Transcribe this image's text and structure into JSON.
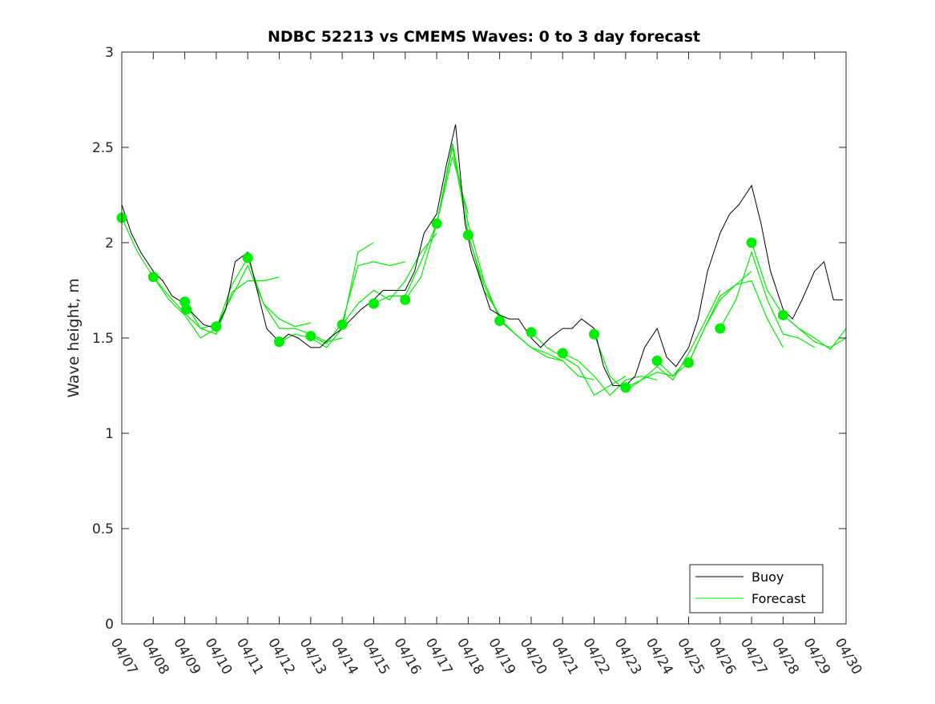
{
  "chart_data": {
    "type": "line",
    "title": "NDBC 52213 vs CMEMS Waves: 0 to 3 day forecast",
    "xlabel": "",
    "ylabel": "Wave height, m",
    "xlim": [
      "04/07",
      "04/30"
    ],
    "ylim": [
      0,
      3
    ],
    "x_ticks": [
      "04/07",
      "04/08",
      "04/09",
      "04/10",
      "04/11",
      "04/12",
      "04/13",
      "04/14",
      "04/15",
      "04/16",
      "04/17",
      "04/18",
      "04/19",
      "04/20",
      "04/21",
      "04/22",
      "04/23",
      "04/24",
      "04/25",
      "04/26",
      "04/27",
      "04/28",
      "04/29",
      "04/30"
    ],
    "y_ticks": [
      "0",
      "0.5",
      "1",
      "1.5",
      "2",
      "2.5",
      "3"
    ],
    "grid": false,
    "legend": {
      "placement": "bottom-right",
      "entries": [
        "Buoy",
        "Forecast"
      ]
    },
    "colors": {
      "buoy": "#000000",
      "forecast": "#00ee00",
      "axes": "#262626"
    },
    "buoy": {
      "name": "Buoy",
      "day_offset": [
        0,
        0.3,
        0.6,
        1,
        1.3,
        1.6,
        2,
        2.3,
        2.6,
        3,
        3.3,
        3.6,
        4,
        4.3,
        4.6,
        5,
        5.3,
        5.6,
        6,
        6.3,
        6.6,
        7,
        7.3,
        7.6,
        8,
        8.3,
        8.6,
        9,
        9.3,
        9.6,
        10,
        10.3,
        10.6,
        10.9,
        11.1,
        11.4,
        11.7,
        12,
        12.3,
        12.6,
        13,
        13.3,
        13.6,
        14,
        14.3,
        14.6,
        15,
        15.3,
        15.6,
        16,
        16.3,
        16.6,
        17,
        17.3,
        17.6,
        18,
        18.3,
        18.6,
        19,
        19.3,
        19.6,
        20,
        20.3,
        20.6,
        21,
        21.3,
        21.6,
        22,
        22.3,
        22.6,
        22.9
      ],
      "hs": [
        2.2,
        2.05,
        1.95,
        1.85,
        1.8,
        1.72,
        1.68,
        1.62,
        1.57,
        1.55,
        1.65,
        1.9,
        1.95,
        1.75,
        1.55,
        1.48,
        1.52,
        1.5,
        1.45,
        1.45,
        1.5,
        1.55,
        1.6,
        1.65,
        1.7,
        1.75,
        1.75,
        1.75,
        1.85,
        2.05,
        2.15,
        2.4,
        2.62,
        2.1,
        1.95,
        1.8,
        1.65,
        1.62,
        1.6,
        1.6,
        1.5,
        1.45,
        1.5,
        1.55,
        1.55,
        1.6,
        1.55,
        1.35,
        1.25,
        1.25,
        1.3,
        1.45,
        1.55,
        1.4,
        1.35,
        1.45,
        1.6,
        1.85,
        2.05,
        2.15,
        2.2,
        2.3,
        2.1,
        1.85,
        1.65,
        1.6,
        1.7,
        1.85,
        1.9,
        1.7,
        1.7
      ]
    },
    "forecast_runs": [
      {
        "name": "Forecast",
        "day_offset": [
          0,
          0.5,
          1,
          1.5,
          2,
          2.5,
          3
        ],
        "hs": [
          2.13,
          1.95,
          1.82,
          1.72,
          1.63,
          1.55,
          1.57
        ]
      },
      {
        "name": "Forecast",
        "day_offset": [
          1,
          1.5,
          2,
          2.5,
          3,
          3.5,
          4
        ],
        "hs": [
          1.82,
          1.7,
          1.62,
          1.5,
          1.55,
          1.78,
          1.92
        ]
      },
      {
        "name": "Forecast",
        "day_offset": [
          2,
          2.5,
          3,
          3.5,
          4,
          4.5,
          5
        ],
        "hs": [
          1.69,
          1.55,
          1.52,
          1.74,
          1.8,
          1.8,
          1.82
        ]
      },
      {
        "name": "Forecast",
        "day_offset": [
          3,
          3.5,
          4,
          4.5,
          5,
          5.5,
          6
        ],
        "hs": [
          1.56,
          1.72,
          1.88,
          1.68,
          1.6,
          1.56,
          1.58
        ]
      },
      {
        "name": "Forecast",
        "day_offset": [
          4,
          4.5,
          5,
          5.5,
          6,
          6.5,
          7
        ],
        "hs": [
          1.92,
          1.68,
          1.55,
          1.55,
          1.52,
          1.48,
          1.5
        ]
      },
      {
        "name": "Forecast",
        "day_offset": [
          5,
          5.5,
          6,
          6.5,
          7,
          7.5,
          8
        ],
        "hs": [
          1.48,
          1.52,
          1.5,
          1.45,
          1.55,
          1.95,
          2.0
        ]
      },
      {
        "name": "Forecast",
        "day_offset": [
          6,
          6.5,
          7,
          7.5,
          8,
          8.5,
          9
        ],
        "hs": [
          1.51,
          1.47,
          1.58,
          1.88,
          1.9,
          1.88,
          1.9
        ]
      },
      {
        "name": "Forecast",
        "day_offset": [
          7,
          7.5,
          8,
          8.5,
          9,
          9.5,
          10
        ],
        "hs": [
          1.57,
          1.68,
          1.75,
          1.7,
          1.8,
          1.95,
          2.05
        ]
      },
      {
        "name": "Forecast",
        "day_offset": [
          8,
          8.5,
          9,
          9.5,
          10,
          10.5,
          11
        ],
        "hs": [
          1.68,
          1.72,
          1.72,
          1.9,
          2.1,
          2.45,
          2.15
        ]
      },
      {
        "name": "Forecast",
        "day_offset": [
          9,
          9.5,
          10,
          10.5,
          11,
          11.5,
          12
        ],
        "hs": [
          1.7,
          1.82,
          2.1,
          2.5,
          2.05,
          1.75,
          1.62
        ]
      },
      {
        "name": "Forecast",
        "day_offset": [
          10,
          10.5,
          11,
          11.5,
          12,
          12.5,
          13
        ],
        "hs": [
          2.1,
          2.52,
          2.1,
          1.8,
          1.6,
          1.52,
          1.45
        ]
      },
      {
        "name": "Forecast",
        "day_offset": [
          11,
          11.5,
          12,
          12.5,
          13,
          13.5,
          14
        ],
        "hs": [
          2.04,
          1.78,
          1.6,
          1.52,
          1.45,
          1.42,
          1.38
        ]
      },
      {
        "name": "Forecast",
        "day_offset": [
          12,
          12.5,
          13,
          13.5,
          14,
          14.5,
          15
        ],
        "hs": [
          1.59,
          1.52,
          1.45,
          1.4,
          1.38,
          1.3,
          1.28
        ]
      },
      {
        "name": "Forecast",
        "day_offset": [
          13,
          13.5,
          14,
          14.5,
          15,
          15.5,
          16
        ],
        "hs": [
          1.53,
          1.45,
          1.4,
          1.35,
          1.2,
          1.25,
          1.3
        ]
      },
      {
        "name": "Forecast",
        "day_offset": [
          14,
          14.5,
          15,
          15.5,
          16,
          16.5,
          17
        ],
        "hs": [
          1.42,
          1.38,
          1.3,
          1.2,
          1.28,
          1.3,
          1.28
        ]
      },
      {
        "name": "Forecast",
        "day_offset": [
          15,
          15.5,
          16,
          16.5,
          17,
          17.5,
          18
        ],
        "hs": [
          1.52,
          1.3,
          1.22,
          1.28,
          1.32,
          1.3,
          1.4
        ]
      },
      {
        "name": "Forecast",
        "day_offset": [
          16,
          16.5,
          17,
          17.5,
          18,
          18.5,
          19
        ],
        "hs": [
          1.24,
          1.28,
          1.35,
          1.28,
          1.42,
          1.58,
          1.75
        ]
      },
      {
        "name": "Forecast",
        "day_offset": [
          17,
          17.5,
          18,
          18.5,
          19,
          19.5,
          20
        ],
        "hs": [
          1.38,
          1.3,
          1.37,
          1.55,
          1.7,
          1.78,
          1.85
        ]
      },
      {
        "name": "Forecast",
        "day_offset": [
          18,
          18.5,
          19,
          19.5,
          20,
          20.5,
          21
        ],
        "hs": [
          1.37,
          1.55,
          1.72,
          1.78,
          1.8,
          1.6,
          1.45
        ]
      },
      {
        "name": "Forecast",
        "day_offset": [
          19,
          19.5,
          20,
          20.5,
          21,
          21.5,
          22
        ],
        "hs": [
          1.55,
          1.7,
          1.95,
          1.7,
          1.52,
          1.5,
          1.45
        ]
      },
      {
        "name": "Forecast",
        "day_offset": [
          20,
          20.5,
          21,
          21.5,
          22,
          22.5,
          23
        ],
        "hs": [
          2.0,
          1.75,
          1.62,
          1.55,
          1.48,
          1.45,
          1.5
        ]
      },
      {
        "name": "Forecast",
        "day_offset": [
          21,
          21.5,
          22,
          22.5,
          23
        ],
        "hs": [
          1.62,
          1.55,
          1.5,
          1.44,
          1.55
        ]
      }
    ],
    "forecast_initial_points": {
      "day_offset": [
        0,
        1,
        2,
        2.05,
        3,
        4,
        5,
        6,
        7,
        8,
        9,
        10,
        11,
        12,
        13,
        14,
        15,
        16,
        17,
        18,
        19,
        20,
        21
      ],
      "hs": [
        2.13,
        1.82,
        1.69,
        1.65,
        1.56,
        1.92,
        1.48,
        1.51,
        1.57,
        1.68,
        1.7,
        2.1,
        2.04,
        1.59,
        1.53,
        1.42,
        1.52,
        1.24,
        1.38,
        1.37,
        1.55,
        2.0,
        1.62
      ]
    }
  }
}
